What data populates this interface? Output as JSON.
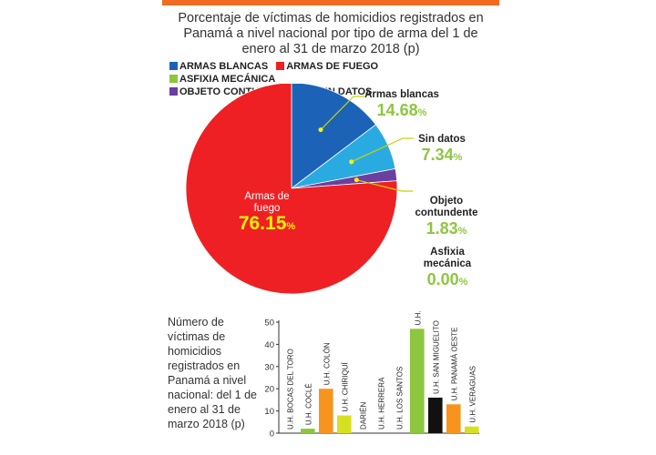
{
  "colors": {
    "accent": "#f26b22",
    "armas_blancas": "#1c63b7",
    "armas_fuego": "#ee2024",
    "asfixia": "#8dc63f",
    "objeto": "#6b3fa0",
    "sin_datos": "#29abe2",
    "value_green": "#8dc63f"
  },
  "pie": {
    "title": "Porcentaje de víctimas de homicidios registrados en Panamá a nivel nacional por tipo de arma del 1 de enero al 31 de marzo 2018 (p)",
    "legend": [
      {
        "label": "ARMAS BLANCAS",
        "color": "#1c63b7"
      },
      {
        "label": "ARMAS DE FUEGO",
        "color": "#ee2024"
      },
      {
        "label": "ASFIXIA MECÁNICA",
        "color": "#8dc63f"
      },
      {
        "label": "OBJETO CONTUNDENTE",
        "color": "#6b3fa0"
      },
      {
        "label": "SIN DATOS",
        "color": "#29abe2"
      }
    ],
    "callouts": {
      "blancas": {
        "label": "Armas blancas",
        "value": "14.68",
        "unit": "%"
      },
      "sin_datos": {
        "label": "Sin datos",
        "value": "7.34",
        "unit": "%"
      },
      "objeto": {
        "label": "Objeto contundente",
        "value": "1.83",
        "unit": "%"
      },
      "asfixia": {
        "label": "Asfixia mecánica",
        "value": "0.00",
        "unit": "%"
      },
      "fuego": {
        "label": "Armas de fuego",
        "value": "76.15",
        "unit": "%"
      }
    }
  },
  "bar": {
    "caption": "Número de víctimas de homicidios registrados en Panamá a nivel nacional: del 1 de enero al 31 de marzo 2018 (p)"
  },
  "chart_data": [
    {
      "type": "pie",
      "title": "Porcentaje de víctimas de homicidios registrados en Panamá a nivel nacional por tipo de arma del 1 de enero al 31 de marzo 2018 (p)",
      "categories": [
        "Armas blancas",
        "Sin datos",
        "Objeto contundente",
        "Asfixia mecánica",
        "Armas de fuego"
      ],
      "values": [
        14.68,
        7.34,
        1.83,
        0.0,
        76.15
      ],
      "colors": [
        "#1c63b7",
        "#29abe2",
        "#6b3fa0",
        "#8dc63f",
        "#ee2024"
      ]
    },
    {
      "type": "bar",
      "title": "Número de víctimas de homicidios registrados en Panamá a nivel nacional: del 1 de enero al 31 de marzo 2018 (p)",
      "categories": [
        "U.H. BOCAS DEL TORO",
        "U.H. COCLÉ",
        "U.H. COLÓN",
        "U.H. CHIRIQUÍ",
        "DARIÉN",
        "U.H. HERRERA",
        "U.H. LOS SANTOS",
        "U.H. PANAMÁ",
        "U.H. SAN MIGUELITO",
        "U.H. PANAMÁ OESTE",
        "U.H. VERAGUAS"
      ],
      "values": [
        0,
        2,
        20,
        8,
        0,
        0,
        0,
        47,
        16,
        13,
        3
      ],
      "colors": [
        "#8dc63f",
        "#8dc63f",
        "#f7941d",
        "#d7df23",
        "#8dc63f",
        "#8dc63f",
        "#8dc63f",
        "#8dc63f",
        "#111111",
        "#f7941d",
        "#d7df23"
      ],
      "ylim": [
        0,
        50
      ],
      "yticks": [
        0,
        10,
        20,
        30,
        40,
        50
      ],
      "grid": false
    }
  ]
}
